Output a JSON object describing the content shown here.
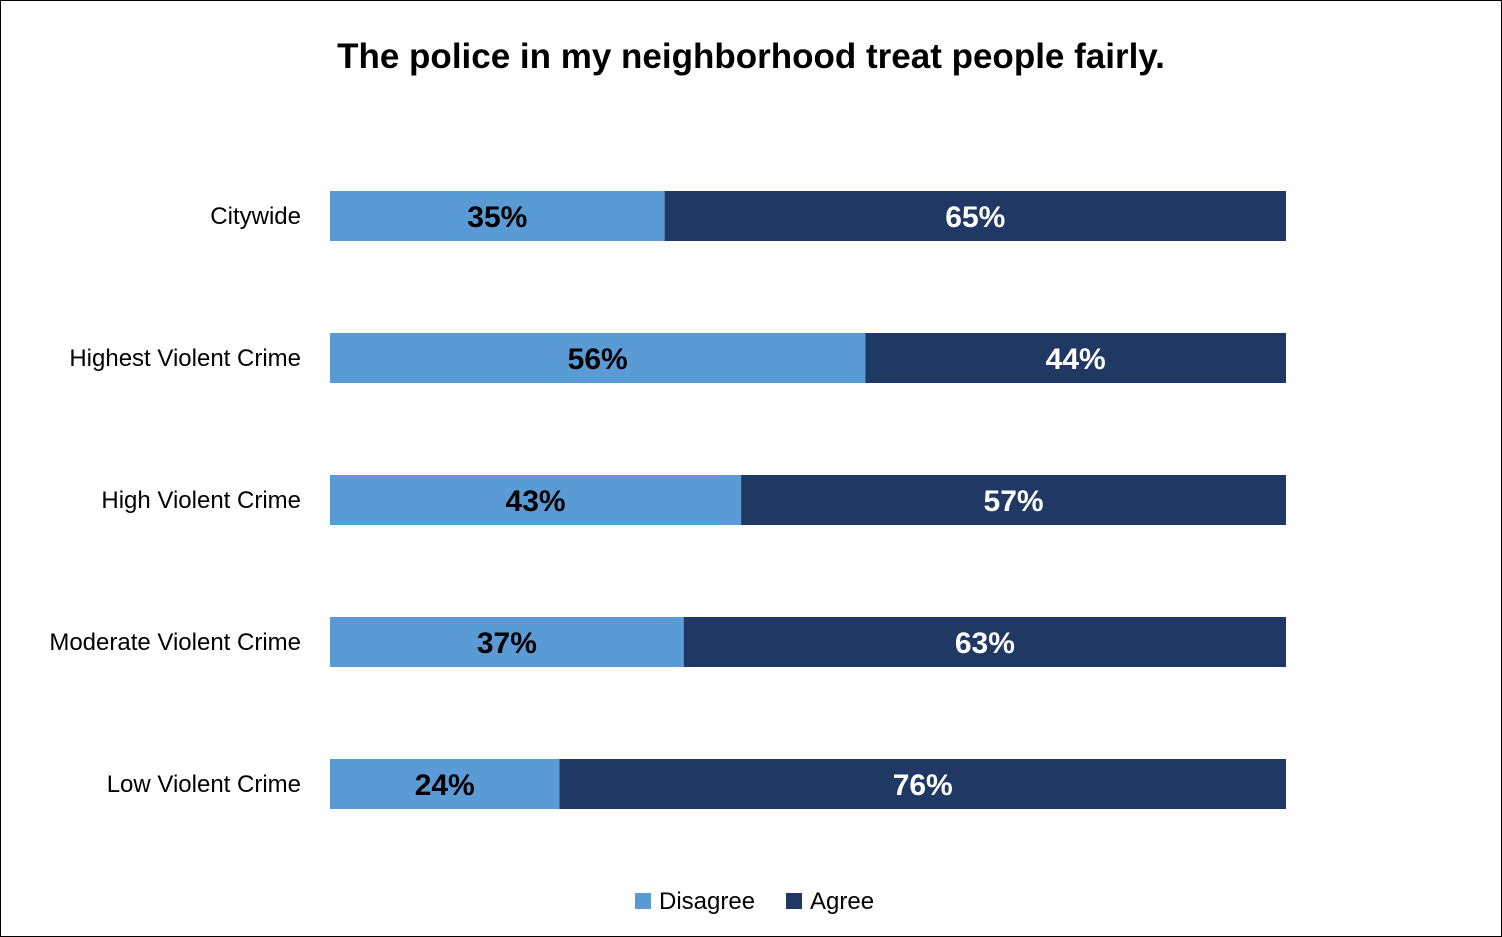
{
  "chart_data": {
    "type": "bar",
    "orientation": "horizontal",
    "stacked": true,
    "title": "The police in my neighborhood treat people fairly.",
    "categories": [
      "Citywide",
      "Highest Violent Crime",
      "High Violent Crime",
      "Moderate Violent Crime",
      "Low Violent Crime"
    ],
    "series": [
      {
        "name": "Disagree",
        "color": "#5B9BD5",
        "label_color": "#000000",
        "values": [
          35,
          56,
          43,
          37,
          24
        ],
        "labels": [
          "35%",
          "56%",
          "43%",
          "37%",
          "24%"
        ]
      },
      {
        "name": "Agree",
        "color": "#203864",
        "label_color": "#ffffff",
        "values": [
          65,
          44,
          57,
          63,
          76
        ],
        "labels": [
          "65%",
          "44%",
          "57%",
          "63%",
          "76%"
        ]
      }
    ],
    "xlim": [
      0,
      100
    ],
    "xlabel": "",
    "ylabel": "",
    "grid": false,
    "legend_position": "bottom"
  }
}
